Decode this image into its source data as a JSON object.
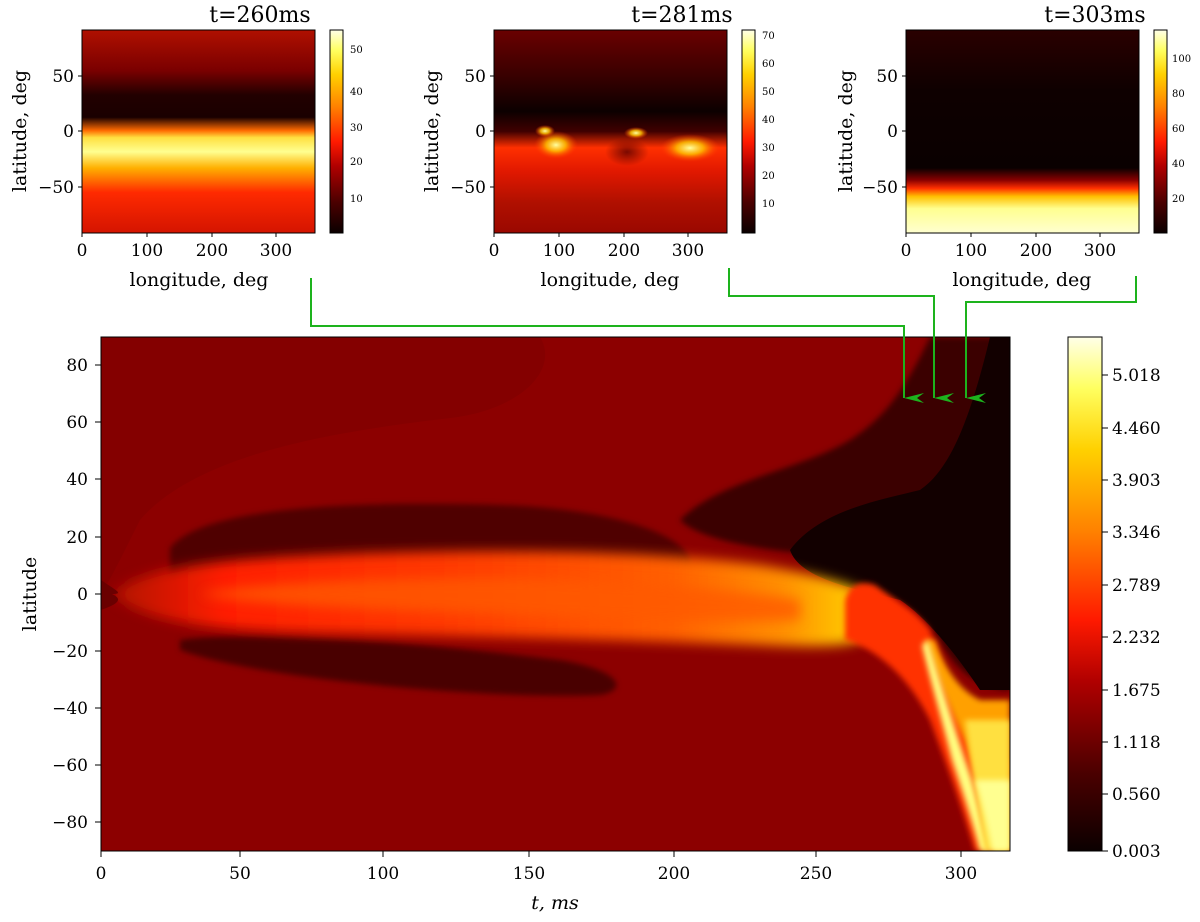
{
  "chart_data": [
    {
      "type": "heatmap",
      "title": "t=260ms",
      "xlabel": "longitude, deg",
      "ylabel": "latitude, deg",
      "xlim": [
        0,
        360
      ],
      "ylim": [
        -90,
        90
      ],
      "xticks": [
        "0",
        "100",
        "200",
        "300"
      ],
      "yticks": [
        "50",
        "0",
        "−50"
      ],
      "colorbar": {
        "min": 0,
        "max": 57,
        "ticks": [
          "50",
          "40",
          "30",
          "20",
          "10"
        ]
      },
      "colormap": "hot",
      "description": "bright band just south of the equator, dark band at 10–30 deg north"
    },
    {
      "type": "heatmap",
      "title": "t=281ms",
      "xlabel": "longitude, deg",
      "ylabel": "latitude, deg",
      "xlim": [
        0,
        360
      ],
      "ylim": [
        -90,
        90
      ],
      "xticks": [
        "0",
        "100",
        "200",
        "300"
      ],
      "yticks": [
        "50",
        "0",
        "−50"
      ],
      "colorbar": {
        "min": 0,
        "max": 72,
        "ticks": [
          "70",
          "60",
          "50",
          "40",
          "30",
          "20",
          "10"
        ]
      },
      "colormap": "hot"
    },
    {
      "type": "heatmap",
      "title": "t=303ms",
      "xlabel": "longitude, deg",
      "ylabel": "latitude, deg",
      "xlim": [
        0,
        360
      ],
      "ylim": [
        -90,
        90
      ],
      "xticks": [
        "0",
        "100",
        "200",
        "300"
      ],
      "yticks": [
        "50",
        "0",
        "−50"
      ],
      "colorbar": {
        "min": 0,
        "max": 118,
        "ticks": [
          "100",
          "80",
          "60",
          "40",
          "20"
        ]
      },
      "colormap": "hot"
    },
    {
      "type": "heatmap",
      "title": "",
      "xlabel": "t, ms",
      "ylabel": "latitude",
      "xlim": [
        0,
        317
      ],
      "ylim": [
        -90,
        90
      ],
      "xticks": [
        "0",
        "50",
        "100",
        "150",
        "200",
        "250",
        "300"
      ],
      "yticks": [
        "80",
        "60",
        "40",
        "20",
        "0",
        "−20",
        "−40",
        "−60",
        "−80"
      ],
      "colorbar": {
        "min": 0.003,
        "max": 5.3,
        "ticks": [
          "5.018",
          "4.460",
          "3.903",
          "3.346",
          "2.789",
          "2.232",
          "1.675",
          "1.118",
          "0.560",
          "0.003"
        ]
      },
      "colormap": "hot",
      "arrows_from_panels_to_time_ms": [
        281,
        291,
        301
      ]
    }
  ],
  "colors": {
    "arrow": "#1db31d"
  }
}
